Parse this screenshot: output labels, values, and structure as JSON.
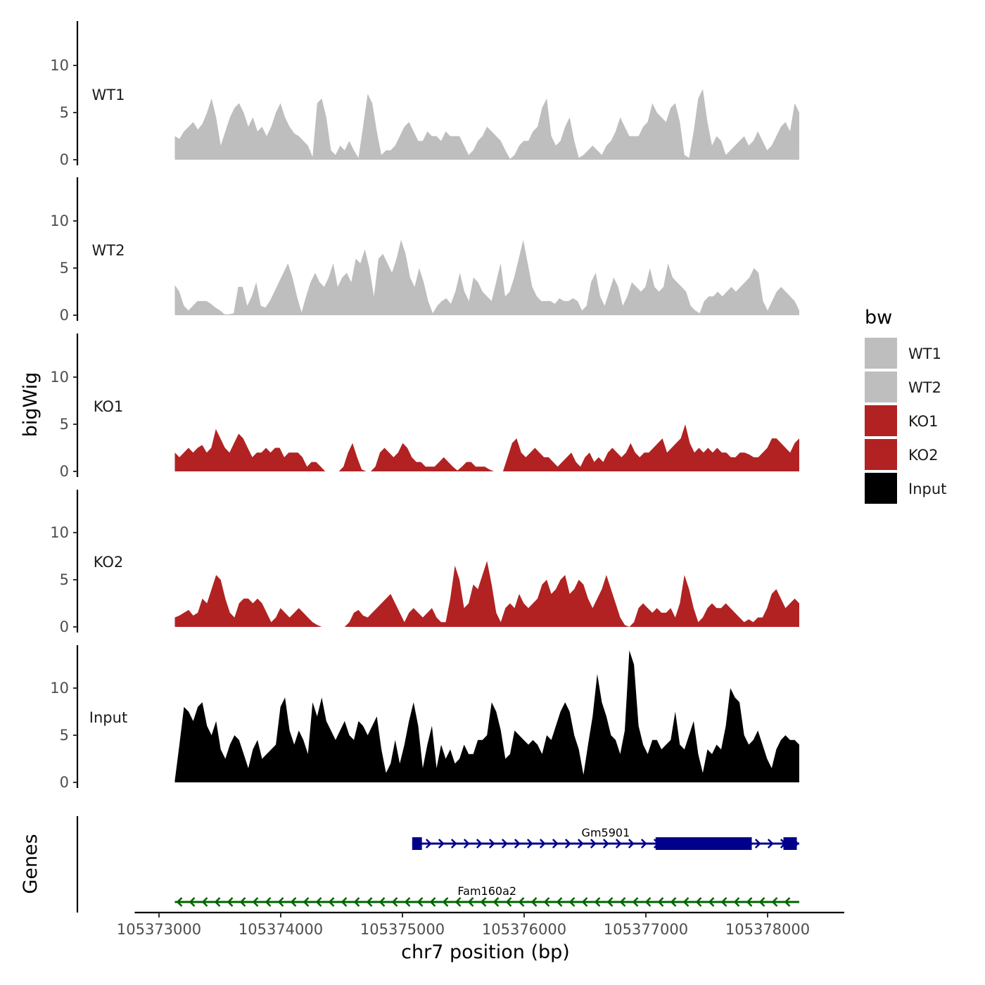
{
  "chart_data": {
    "type": "area",
    "title": "",
    "ylabel": "bigWig",
    "xlabel": "chr7 position (bp)",
    "genes_label": "Genes",
    "ylim": [
      0,
      14
    ],
    "y_ticks": [
      "0",
      "5",
      "10"
    ],
    "xlim": [
      105372800,
      105378630
    ],
    "x_ticks": [
      {
        "value": 105373000,
        "label": "105373000"
      },
      {
        "value": 105374000,
        "label": "105374000"
      },
      {
        "value": 105375000,
        "label": "105375000"
      },
      {
        "value": 105376000,
        "label": "105376000"
      },
      {
        "value": 105377000,
        "label": "105377000"
      },
      {
        "value": 105378000,
        "label": "105378000"
      }
    ],
    "x_start": 105373130,
    "x_end": 105378260,
    "legend": {
      "title": "bw",
      "entries": [
        {
          "label": "WT1",
          "color": "#bebebe"
        },
        {
          "label": "WT2",
          "color": "#bebebe"
        },
        {
          "label": "KO1",
          "color": "#b22222"
        },
        {
          "label": "KO2",
          "color": "#b22222"
        },
        {
          "label": "Input",
          "color": "#000000"
        }
      ]
    },
    "series": [
      {
        "name": "WT1",
        "color": "#bebebe",
        "values": [
          2.5,
          2.2,
          3.0,
          3.5,
          4.0,
          3.2,
          3.8,
          5.0,
          6.5,
          4.5,
          1.5,
          3.0,
          4.5,
          5.5,
          6.0,
          5.0,
          3.5,
          4.5,
          3.0,
          3.5,
          2.5,
          3.5,
          5.0,
          6.0,
          4.5,
          3.5,
          2.8,
          2.5,
          2.0,
          1.5,
          0.3,
          6.0,
          6.5,
          4.5,
          1.0,
          0.5,
          1.5,
          1.0,
          2.0,
          1.0,
          0.2,
          3.5,
          7.0,
          6.0,
          3.0,
          0.5,
          1.0,
          1.0,
          1.5,
          2.5,
          3.5,
          4.0,
          3.0,
          2.0,
          2.0,
          3.0,
          2.5,
          2.5,
          2.0,
          3.0,
          2.5,
          2.5,
          2.5,
          1.5,
          0.5,
          1.0,
          2.0,
          2.5,
          3.5,
          3.0,
          2.5,
          2.0,
          1.0,
          0.1,
          0.5,
          1.5,
          2.0,
          2.0,
          3.0,
          3.5,
          5.5,
          6.5,
          2.5,
          1.5,
          2.0,
          3.5,
          4.5,
          2.0,
          0.2,
          0.5,
          1.0,
          1.5,
          1.0,
          0.5,
          1.5,
          2.0,
          3.0,
          4.5,
          3.5,
          2.5,
          2.5,
          2.5,
          3.5,
          4.0,
          6.0,
          5.0,
          4.5,
          4.0,
          5.5,
          6.0,
          4.0,
          0.5,
          0.2,
          3.0,
          6.5,
          7.5,
          4.0,
          1.5,
          2.5,
          2.0,
          0.5,
          1.0,
          1.5,
          2.0,
          2.5,
          1.5,
          2.0,
          3.0,
          2.0,
          1.0,
          1.5,
          2.5,
          3.5,
          4.0,
          3.0,
          6.0,
          5.0
        ]
      },
      {
        "name": "WT2",
        "color": "#bebebe",
        "values": [
          3.2,
          2.5,
          1.0,
          0.5,
          1.0,
          1.5,
          1.5,
          1.5,
          1.2,
          0.8,
          0.5,
          0.1,
          0.1,
          0.2,
          3.0,
          3.0,
          1.0,
          2.0,
          3.5,
          1.0,
          0.8,
          1.5,
          2.5,
          3.5,
          4.5,
          5.5,
          4.0,
          2.0,
          0.3,
          2.0,
          3.5,
          4.5,
          3.5,
          3.0,
          4.0,
          5.5,
          3.0,
          4.0,
          4.5,
          3.5,
          6.0,
          5.5,
          7.0,
          5.0,
          2.0,
          6.0,
          6.5,
          5.5,
          4.5,
          6.0,
          8.0,
          6.5,
          4.0,
          3.0,
          5.0,
          3.5,
          1.5,
          0.2,
          1.0,
          1.5,
          1.8,
          1.2,
          2.5,
          4.5,
          2.5,
          1.5,
          4.0,
          3.5,
          2.5,
          2.0,
          1.5,
          3.5,
          5.5,
          2.0,
          2.5,
          4.0,
          6.0,
          8.0,
          5.5,
          3.0,
          2.0,
          1.5,
          1.5,
          1.5,
          1.2,
          1.8,
          1.5,
          1.5,
          1.8,
          1.5,
          0.5,
          1.0,
          3.5,
          4.5,
          2.0,
          1.0,
          2.5,
          4.0,
          3.0,
          1.0,
          2.0,
          3.5,
          3.0,
          2.5,
          3.0,
          5.0,
          3.0,
          2.5,
          3.0,
          5.5,
          4.0,
          3.5,
          3.0,
          2.5,
          1.0,
          0.5,
          0.2,
          1.5,
          2.0,
          2.0,
          2.5,
          2.0,
          2.5,
          3.0,
          2.5,
          3.0,
          3.5,
          4.0,
          5.0,
          4.5,
          1.5,
          0.5,
          1.5,
          2.5,
          3.0,
          2.5,
          2.0,
          1.5,
          0.5
        ]
      },
      {
        "name": "KO1",
        "color": "#b22222",
        "values": [
          2.0,
          1.5,
          2.0,
          2.5,
          2.0,
          2.5,
          2.8,
          2.0,
          2.5,
          4.5,
          3.5,
          2.5,
          2.0,
          3.0,
          4.0,
          3.5,
          2.5,
          1.5,
          2.0,
          2.0,
          2.5,
          2.0,
          2.5,
          2.5,
          1.5,
          2.0,
          2.0,
          2.0,
          1.5,
          0.5,
          1.0,
          1.0,
          0.5,
          0.0,
          0.0,
          0.0,
          0.0,
          0.5,
          2.0,
          3.0,
          1.5,
          0.2,
          0.0,
          0.0,
          0.5,
          2.0,
          2.5,
          2.0,
          1.5,
          2.0,
          3.0,
          2.5,
          1.5,
          1.0,
          1.0,
          0.5,
          0.5,
          0.5,
          1.0,
          1.5,
          1.0,
          0.5,
          0.1,
          0.5,
          1.0,
          1.0,
          0.5,
          0.5,
          0.5,
          0.2,
          0.0,
          0.0,
          0.0,
          1.5,
          3.0,
          3.5,
          2.0,
          1.5,
          2.0,
          2.5,
          2.0,
          1.5,
          1.5,
          1.0,
          0.5,
          1.0,
          1.5,
          2.0,
          1.0,
          0.5,
          1.5,
          2.0,
          1.0,
          1.5,
          1.0,
          2.0,
          2.5,
          2.0,
          1.5,
          2.0,
          3.0,
          2.0,
          1.5,
          2.0,
          2.0,
          2.5,
          3.0,
          3.5,
          2.0,
          2.5,
          3.0,
          3.5,
          5.0,
          3.0,
          2.0,
          2.5,
          2.0,
          2.5,
          2.0,
          2.5,
          2.0,
          2.0,
          1.5,
          1.5,
          2.0,
          2.0,
          1.8,
          1.5,
          1.5,
          2.0,
          2.5,
          3.5,
          3.5,
          3.0,
          2.5,
          2.0,
          3.0,
          3.5
        ]
      },
      {
        "name": "KO2",
        "color": "#b22222",
        "values": [
          1.0,
          1.2,
          1.5,
          1.8,
          1.2,
          1.5,
          3.0,
          2.5,
          4.0,
          5.5,
          5.0,
          3.0,
          1.5,
          1.0,
          2.5,
          3.0,
          3.0,
          2.5,
          3.0,
          2.5,
          1.5,
          0.5,
          1.0,
          2.0,
          1.5,
          1.0,
          1.5,
          2.0,
          1.5,
          1.0,
          0.5,
          0.2,
          0.0,
          0.0,
          0.0,
          0.0,
          0.0,
          0.0,
          0.5,
          1.5,
          1.8,
          1.2,
          1.0,
          1.5,
          2.0,
          2.5,
          3.0,
          3.5,
          2.5,
          1.5,
          0.5,
          1.5,
          2.0,
          1.5,
          1.0,
          1.5,
          2.0,
          1.0,
          0.5,
          0.5,
          3.0,
          6.5,
          5.0,
          2.0,
          2.5,
          4.5,
          4.0,
          5.5,
          7.0,
          4.5,
          1.5,
          0.5,
          2.0,
          2.5,
          2.0,
          3.5,
          2.5,
          2.0,
          2.5,
          3.0,
          4.5,
          5.0,
          3.5,
          4.0,
          5.0,
          5.5,
          3.5,
          4.0,
          5.0,
          4.5,
          3.0,
          2.0,
          3.0,
          4.0,
          5.5,
          4.0,
          2.5,
          1.0,
          0.2,
          0.0,
          0.5,
          2.0,
          2.5,
          2.0,
          1.5,
          2.0,
          1.5,
          1.5,
          2.0,
          1.0,
          2.5,
          5.5,
          4.0,
          2.0,
          0.5,
          1.0,
          2.0,
          2.5,
          2.0,
          2.0,
          2.5,
          2.0,
          1.5,
          1.0,
          0.5,
          0.8,
          0.5,
          1.0,
          1.0,
          2.0,
          3.5,
          4.0,
          3.0,
          2.0,
          2.5,
          3.0,
          2.5
        ]
      },
      {
        "name": "Input",
        "color": "#000000",
        "values": [
          0.2,
          4.0,
          8.0,
          7.5,
          6.5,
          8.0,
          8.5,
          6.0,
          5.0,
          6.5,
          3.5,
          2.5,
          4.0,
          5.0,
          4.5,
          3.0,
          1.5,
          3.5,
          4.5,
          2.5,
          3.0,
          3.5,
          4.0,
          8.0,
          9.0,
          5.5,
          4.0,
          5.5,
          4.5,
          3.0,
          8.5,
          7.0,
          9.0,
          6.5,
          5.5,
          4.5,
          5.5,
          6.5,
          5.0,
          4.5,
          6.5,
          6.0,
          5.0,
          6.0,
          7.0,
          3.5,
          1.0,
          2.0,
          4.5,
          2.0,
          4.0,
          6.5,
          8.5,
          6.0,
          1.5,
          4.0,
          6.0,
          1.5,
          4.0,
          2.5,
          3.5,
          2.0,
          2.5,
          4.0,
          3.0,
          3.0,
          4.5,
          4.5,
          5.0,
          8.5,
          7.5,
          5.5,
          2.5,
          3.0,
          5.5,
          5.0,
          4.5,
          4.0,
          4.5,
          4.0,
          3.0,
          5.0,
          4.5,
          6.0,
          7.5,
          8.5,
          7.5,
          5.0,
          3.5,
          0.8,
          4.0,
          7.0,
          11.5,
          8.5,
          7.0,
          5.0,
          4.5,
          3.0,
          5.5,
          14.0,
          12.5,
          6.0,
          4.0,
          3.0,
          4.5,
          4.5,
          3.5,
          4.0,
          4.5,
          7.5,
          4.0,
          3.5,
          5.0,
          6.5,
          3.0,
          1.0,
          3.5,
          3.0,
          4.0,
          3.5,
          6.0,
          10.0,
          9.0,
          8.5,
          5.0,
          4.0,
          4.5,
          5.5,
          4.0,
          2.5,
          1.5,
          3.5,
          4.5,
          5.0,
          4.5,
          4.5,
          4.0
        ]
      }
    ],
    "genes": [
      {
        "name": "Gm5901",
        "strand": "+",
        "color": "#00008b",
        "start": 105375080,
        "end": 105378260,
        "exons": [
          {
            "start": 105375080,
            "end": 105375160
          },
          {
            "start": 105377080,
            "end": 105377870
          },
          {
            "start": 105378130,
            "end": 105378240
          }
        ]
      },
      {
        "name": "Fam160a2",
        "strand": "-",
        "color": "#006400",
        "start": 105373130,
        "end": 105378260,
        "exons": []
      }
    ]
  }
}
